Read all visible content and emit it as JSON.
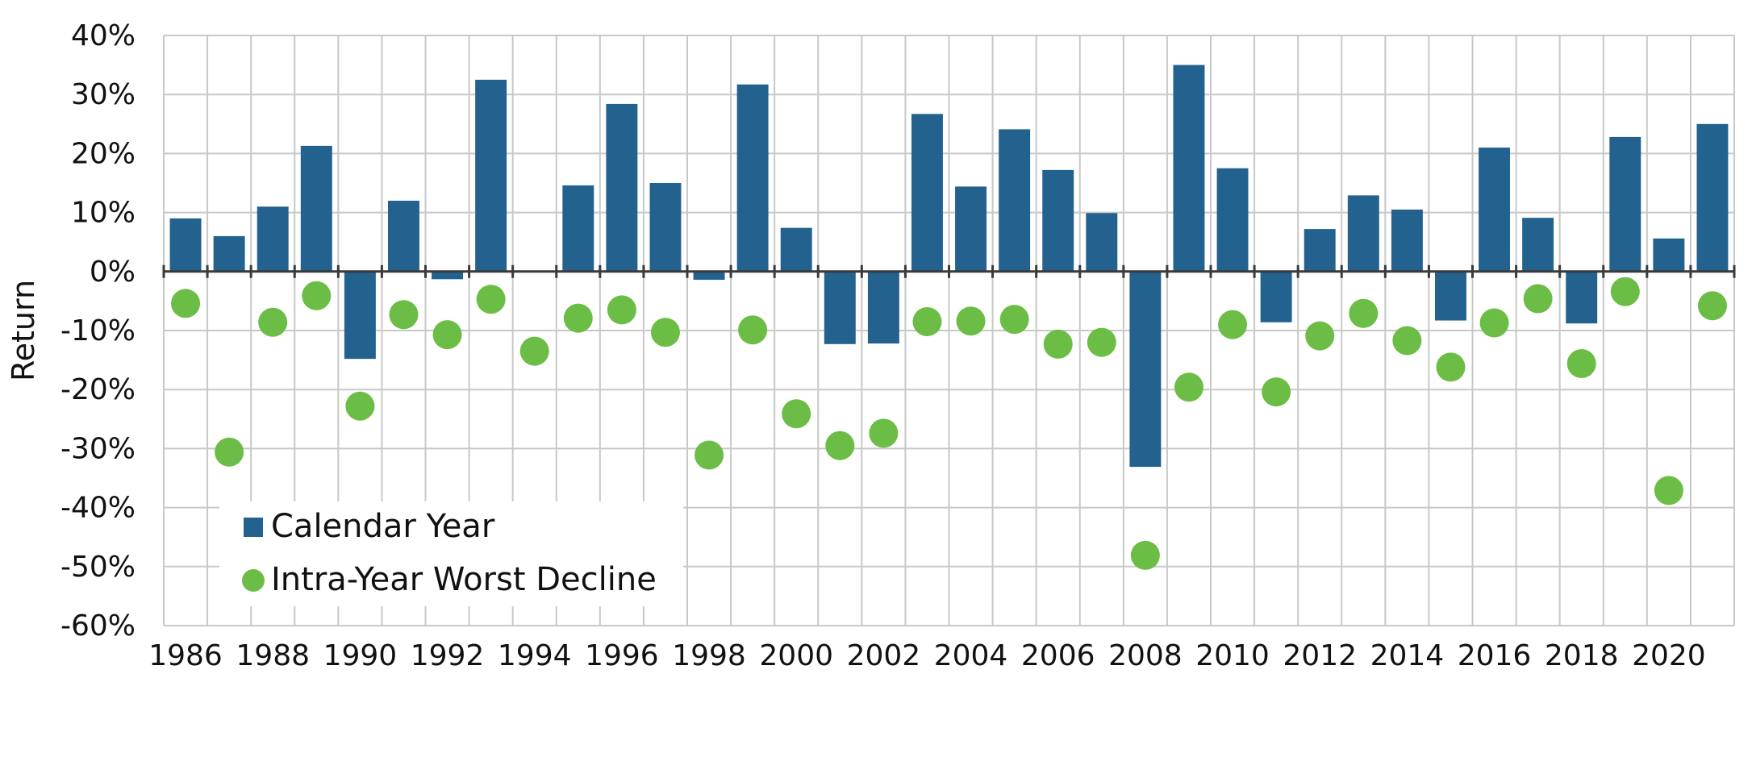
{
  "chart_data": {
    "type": "bar",
    "title": "",
    "xlabel": "",
    "ylabel": "Return",
    "ylim": [
      -60,
      40
    ],
    "y_ticks": [
      "40%",
      "30%",
      "20%",
      "10%",
      "0%",
      "-10%",
      "-20%",
      "-30%",
      "-40%",
      "-50%",
      "-60%"
    ],
    "x_tick_labels": [
      "1986",
      "1988",
      "1990",
      "1992",
      "1994",
      "1996",
      "1998",
      "2000",
      "2002",
      "2004",
      "2006",
      "2008",
      "2010",
      "2012",
      "2014",
      "2016",
      "2018",
      "2020"
    ],
    "grid": true,
    "legend_position": "bottom-left",
    "categories": [
      1986,
      1987,
      1988,
      1989,
      1990,
      1991,
      1992,
      1993,
      1994,
      1995,
      1996,
      1997,
      1998,
      1999,
      2000,
      2001,
      2002,
      2003,
      2004,
      2005,
      2006,
      2007,
      2008,
      2009,
      2010,
      2011,
      2012,
      2013,
      2014,
      2015,
      2016,
      2017,
      2018,
      2019,
      2020,
      2021
    ],
    "series": [
      {
        "name": "Calendar Year",
        "type": "bar",
        "color": "#23618f",
        "values": [
          9,
          6,
          11,
          21.3,
          -14.8,
          12,
          -1.3,
          32.5,
          null,
          14.6,
          28.4,
          15,
          -1.4,
          31.7,
          7.4,
          -12.3,
          -12.2,
          26.7,
          14.4,
          24.1,
          17.2,
          9.9,
          -33.1,
          35,
          17.5,
          -8.6,
          7.2,
          12.9,
          10.5,
          -8.3,
          21,
          9.1,
          -8.8,
          22.8,
          5.6,
          25
        ]
      },
      {
        "name": "Intra-Year Worst Decline",
        "type": "scatter",
        "color": "#6cbd45",
        "values": [
          -5.4,
          -30.6,
          -8.6,
          -4.1,
          -22.8,
          -7.3,
          -10.7,
          -4.7,
          -13.5,
          -7.9,
          -6.5,
          -10.3,
          -31.1,
          -9.9,
          -24.1,
          -29.5,
          -27.4,
          -8.5,
          -8.4,
          -8.1,
          -12.3,
          -12,
          -48.1,
          -19.6,
          -9,
          -20.4,
          -10.9,
          -7.1,
          -11.7,
          -16.2,
          -8.7,
          -4.6,
          -15.6,
          -3.4,
          -37.1,
          -5.8
        ]
      }
    ]
  },
  "legend": {
    "items": [
      {
        "label": "Calendar Year"
      },
      {
        "label": "Intra-Year Worst Decline"
      }
    ]
  }
}
